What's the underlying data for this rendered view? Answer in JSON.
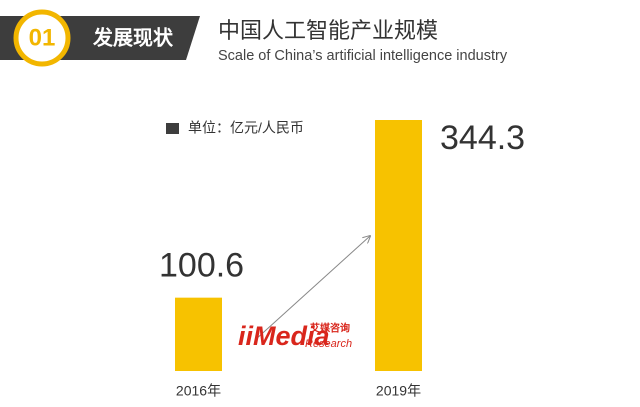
{
  "chart_data": {
    "type": "bar",
    "badge": "01",
    "section": "发展现状",
    "title": "中国人工智能产业规模",
    "subtitle": "Scale of China’s artificial intelligence industry",
    "unit": "单位：亿元/人民币",
    "categories": [
      "2016年",
      "2019年"
    ],
    "values": [
      100.6,
      344.3
    ],
    "color": "#f7c200",
    "watermark": {
      "brand": "iiMedia",
      "cn": "艾媒咨询",
      "en": "Research"
    }
  }
}
